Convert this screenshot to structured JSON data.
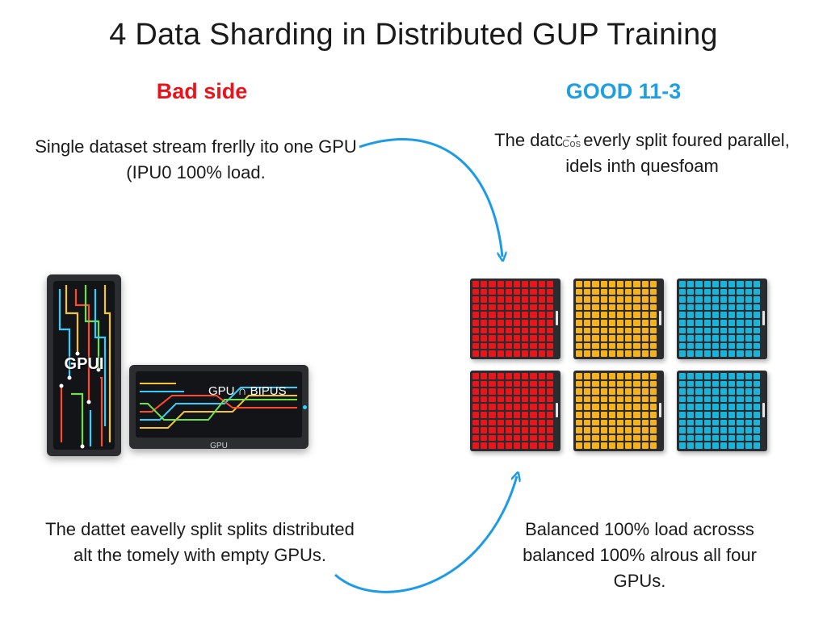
{
  "title": "4 Data Sharding in Distributed GUP Training",
  "bad": {
    "heading": "Bad side",
    "heading_color": "#e8141b",
    "description": "Single dataset stream frerlly ito one GPU (IPU0 100% load.",
    "bottom_text": "The dattet eavelly split splits distributed alt the tomely with empty GPUs.",
    "tower_label": "GPUI",
    "board_label": "GPU ∩ BIPUS",
    "board_footer": "GPU"
  },
  "good": {
    "heading": "GOOD 11-3",
    "heading_color": "#1f9fe0",
    "description": "The datcet everly split foured parallel, idels inth quesfoam",
    "stray_text": "Cos",
    "bottom_text": "Balanced 100% load acrosss balanced 100% alrous all four GPUs.",
    "block_colors": [
      "#e8151b",
      "#f5b21d",
      "#1ab3d9",
      "#e8151b",
      "#f5b21d",
      "#1ab3d9"
    ]
  },
  "arrow_color": "#1e9be6"
}
